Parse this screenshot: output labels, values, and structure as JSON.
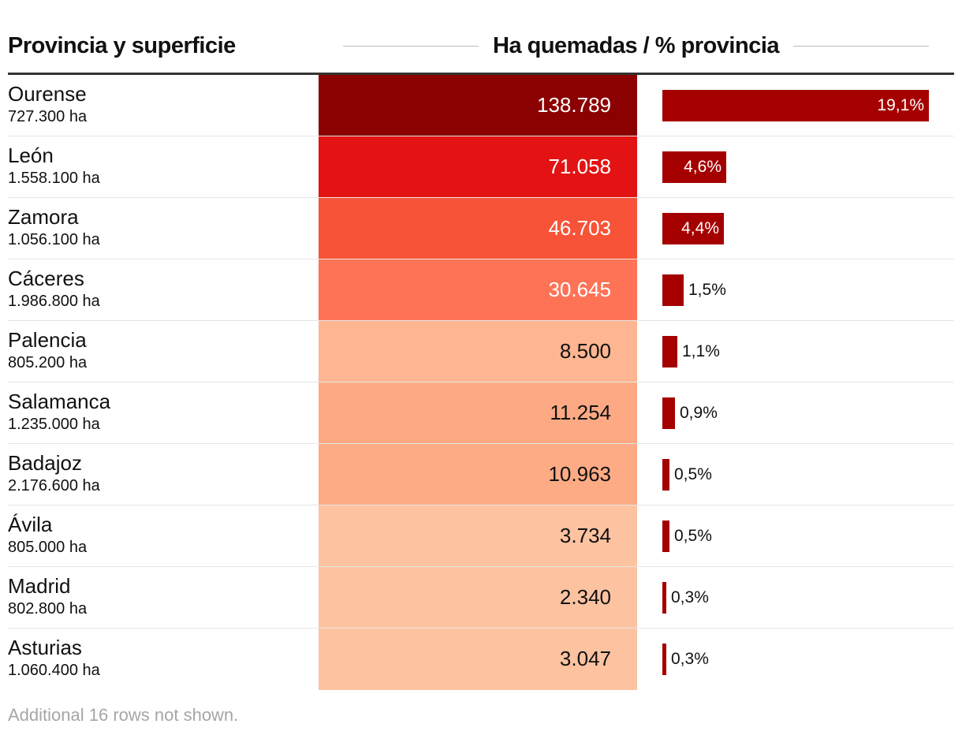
{
  "header": {
    "left": "Provincia y superficie",
    "right": "Ha quemadas / % provincia"
  },
  "colors": {
    "bar": "#a50000"
  },
  "chart_data": {
    "type": "table",
    "columns": [
      "Provincia y superficie",
      "Ha quemadas",
      "% provincia"
    ],
    "pct_max": 19.1,
    "rows": [
      {
        "name": "Ourense",
        "area": "727.300 ha",
        "ha": "138.789",
        "pct": 19.1,
        "pct_label": "19,1%",
        "fill": "#8b0000",
        "text_color": "#ffffff"
      },
      {
        "name": "León",
        "area": "1.558.100 ha",
        "ha": "71.058",
        "pct": 4.6,
        "pct_label": "4,6%",
        "fill": "#e31313",
        "text_color": "#ffffff"
      },
      {
        "name": "Zamora",
        "area": "1.056.100 ha",
        "ha": "46.703",
        "pct": 4.4,
        "pct_label": "4,4%",
        "fill": "#f75338",
        "text_color": "#ffffff"
      },
      {
        "name": "Cáceres",
        "area": "1.986.800 ha",
        "ha": "30.645",
        "pct": 1.5,
        "pct_label": "1,5%",
        "fill": "#fe7356",
        "text_color": "#ffffff"
      },
      {
        "name": "Palencia",
        "area": "805.200 ha",
        "ha": "8.500",
        "pct": 1.1,
        "pct_label": "1,1%",
        "fill": "#fdb691",
        "text_color": "#111111"
      },
      {
        "name": "Salamanca",
        "area": "1.235.000 ha",
        "ha": "11.254",
        "pct": 0.9,
        "pct_label": "0,9%",
        "fill": "#fdaa84",
        "text_color": "#111111"
      },
      {
        "name": "Badajoz",
        "area": "2.176.600 ha",
        "ha": "10.963",
        "pct": 0.5,
        "pct_label": "0,5%",
        "fill": "#fdab85",
        "text_color": "#111111"
      },
      {
        "name": "Ávila",
        "area": "805.000 ha",
        "ha": "3.734",
        "pct": 0.5,
        "pct_label": "0,5%",
        "fill": "#fdc29f",
        "text_color": "#111111"
      },
      {
        "name": "Madrid",
        "area": "802.800 ha",
        "ha": "2.340",
        "pct": 0.3,
        "pct_label": "0,3%",
        "fill": "#fdc3a1",
        "text_color": "#111111"
      },
      {
        "name": "Asturias",
        "area": "1.060.400 ha",
        "ha": "3.047",
        "pct": 0.3,
        "pct_label": "0,3%",
        "fill": "#fdc3a1",
        "text_color": "#111111"
      }
    ]
  },
  "footnote": "Additional 16 rows not shown."
}
